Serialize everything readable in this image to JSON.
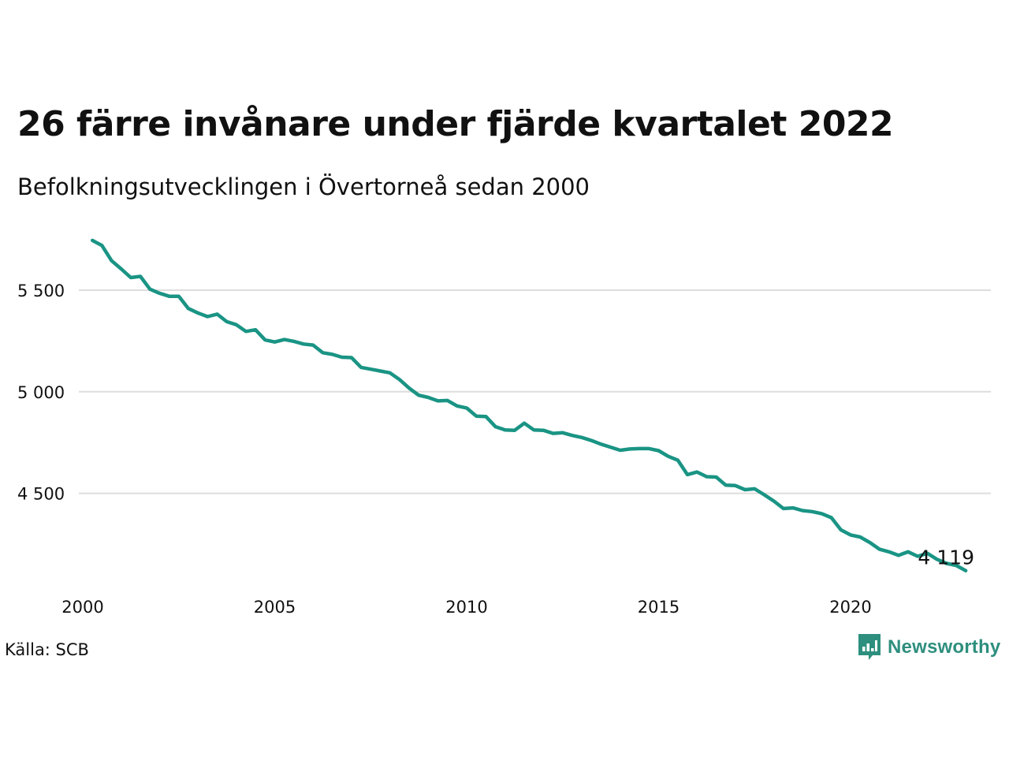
{
  "title": "26 färre invånare under fjärde kvartalet 2022",
  "subtitle": "Befolkningsutvecklingen i Övertorneå sedan 2000",
  "source": "Källa: SCB",
  "brand": "Newsworthy",
  "colors": {
    "line": "#1a9484",
    "grid": "#dddddd",
    "text": "#111111",
    "brand": "#2e8f7e"
  },
  "chart_data": {
    "type": "line",
    "title": "26 färre invånare under fjärde kvartalet 2022",
    "subtitle": "Befolkningsutvecklingen i Övertorneå sedan 2000",
    "xlabel": "",
    "ylabel": "",
    "grid": "horizontal",
    "xlim": [
      2000,
      2023
    ],
    "ylim": [
      4000,
      5800
    ],
    "x_ticks": [
      2000,
      2005,
      2010,
      2015,
      2020
    ],
    "x_tick_labels": [
      "2000",
      "2005",
      "2010",
      "2015",
      "2020"
    ],
    "y_ticks": [
      4500,
      5000,
      5500
    ],
    "y_tick_labels": [
      "4 500",
      "5 000",
      "5 500"
    ],
    "series": [
      {
        "color": "#1a9484",
        "x": [
          2000.25,
          2000.5,
          2000.75,
          2001.0,
          2001.25,
          2001.5,
          2001.75,
          2002.0,
          2002.25,
          2002.5,
          2002.75,
          2003.0,
          2003.25,
          2003.5,
          2003.75,
          2004.0,
          2004.25,
          2004.5,
          2004.75,
          2005.0,
          2005.25,
          2005.5,
          2005.75,
          2006.0,
          2006.25,
          2006.5,
          2006.75,
          2007.0,
          2007.25,
          2007.5,
          2007.75,
          2008.0,
          2008.25,
          2008.5,
          2008.75,
          2009.0,
          2009.25,
          2009.5,
          2009.75,
          2010.0,
          2010.25,
          2010.5,
          2010.75,
          2011.0,
          2011.25,
          2011.5,
          2011.75,
          2012.0,
          2012.25,
          2012.5,
          2012.75,
          2013.0,
          2013.25,
          2013.5,
          2013.75,
          2014.0,
          2014.25,
          2014.5,
          2014.75,
          2015.0,
          2015.25,
          2015.5,
          2015.75,
          2016.0,
          2016.25,
          2016.5,
          2016.75,
          2017.0,
          2017.25,
          2017.5,
          2017.75,
          2018.0,
          2018.25,
          2018.5,
          2018.75,
          2019.0,
          2019.25,
          2019.5,
          2019.75,
          2020.0,
          2020.25,
          2020.5,
          2020.75,
          2021.0,
          2021.25,
          2021.5,
          2021.75,
          2022.0,
          2022.25,
          2022.5,
          2022.75,
          2023.0
        ],
        "values": [
          5745,
          5720,
          5645,
          5605,
          5562,
          5568,
          5505,
          5485,
          5470,
          5470,
          5410,
          5388,
          5370,
          5382,
          5345,
          5330,
          5297,
          5305,
          5255,
          5245,
          5257,
          5248,
          5235,
          5230,
          5192,
          5184,
          5170,
          5168,
          5120,
          5111,
          5102,
          5093,
          5060,
          5018,
          4983,
          4972,
          4955,
          4957,
          4930,
          4920,
          4880,
          4878,
          4828,
          4812,
          4810,
          4845,
          4812,
          4810,
          4795,
          4798,
          4785,
          4775,
          4760,
          4742,
          4727,
          4712,
          4718,
          4720,
          4720,
          4710,
          4682,
          4663,
          4592,
          4605,
          4582,
          4580,
          4540,
          4538,
          4518,
          4522,
          4493,
          4462,
          4425,
          4428,
          4415,
          4410,
          4400,
          4380,
          4320,
          4295,
          4285,
          4258,
          4225,
          4212,
          4195,
          4212,
          4190,
          4205,
          4175,
          4155,
          4145,
          4119
        ]
      }
    ],
    "annotations": [
      {
        "x": 2023.0,
        "y": 4119,
        "text": "4 119"
      }
    ]
  }
}
